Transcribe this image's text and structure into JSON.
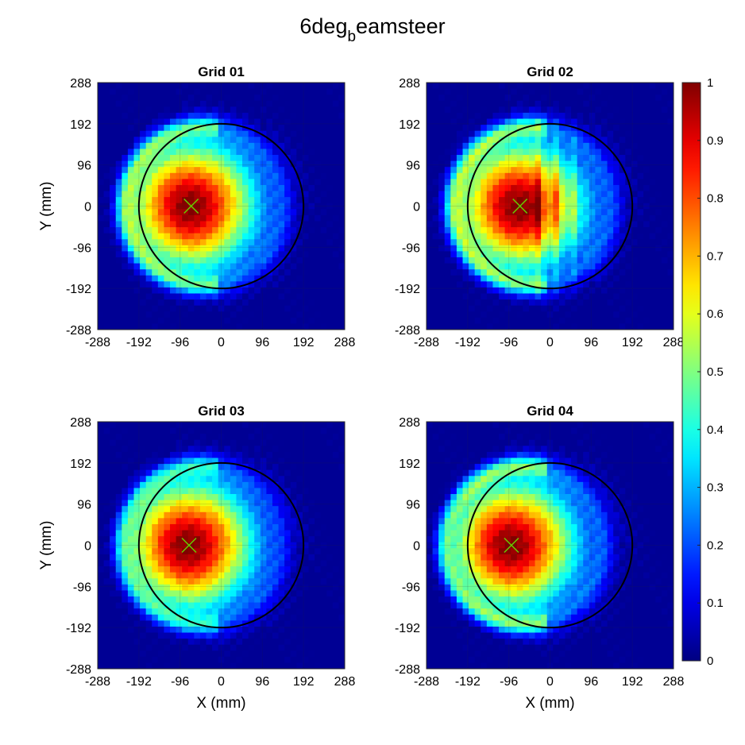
{
  "figure": {
    "title_main": "6deg",
    "title_sub": "b",
    "title_rest": "eamsteer"
  },
  "chart_data": [
    {
      "type": "heatmap",
      "title": "Grid 01",
      "xlabel": "",
      "ylabel": "Y (mm)",
      "xlim": [
        -288,
        288
      ],
      "ylim": [
        -288,
        288
      ],
      "xticks": [
        -288,
        -192,
        -96,
        0,
        96,
        192,
        288
      ],
      "yticks": [
        -288,
        -192,
        -96,
        0,
        96,
        192,
        288
      ],
      "grid": true,
      "beam_center": [
        -70,
        0
      ],
      "circle": {
        "cx": 0,
        "cy": 0,
        "r": 192
      },
      "marker": {
        "x": -70,
        "y": 0,
        "symbol": "x",
        "color": "#66cc00"
      },
      "fringe": 0.28,
      "stripe_period_cells": 0
    },
    {
      "type": "heatmap",
      "title": "Grid 02",
      "xlabel": "",
      "ylabel": "",
      "xlim": [
        -288,
        288
      ],
      "ylim": [
        -288,
        288
      ],
      "xticks": [
        -288,
        -192,
        -96,
        0,
        96,
        192,
        288
      ],
      "yticks": [
        -288,
        -192,
        -96,
        0,
        96,
        192,
        288
      ],
      "grid": true,
      "beam_center": [
        -70,
        0
      ],
      "circle": {
        "cx": 0,
        "cy": 0,
        "r": 192
      },
      "marker": {
        "x": -70,
        "y": 0,
        "symbol": "x",
        "color": "#66cc00"
      },
      "fringe": 0.3,
      "stripe_period_cells": 3
    },
    {
      "type": "heatmap",
      "title": "Grid 03",
      "xlabel": "X (mm)",
      "ylabel": "Y (mm)",
      "xlim": [
        -288,
        288
      ],
      "ylim": [
        -288,
        288
      ],
      "xticks": [
        -288,
        -192,
        -96,
        0,
        96,
        192,
        288
      ],
      "yticks": [
        -288,
        -192,
        -96,
        0,
        96,
        192,
        288
      ],
      "grid": true,
      "beam_center": [
        -75,
        0
      ],
      "circle": {
        "cx": 0,
        "cy": 0,
        "r": 192
      },
      "marker": {
        "x": -75,
        "y": 0,
        "symbol": "x",
        "color": "#66cc00"
      },
      "fringe": 0.22,
      "stripe_period_cells": 0
    },
    {
      "type": "heatmap",
      "title": "Grid 04",
      "xlabel": "X (mm)",
      "ylabel": "",
      "xlim": [
        -288,
        288
      ],
      "ylim": [
        -288,
        288
      ],
      "xticks": [
        -288,
        -192,
        -96,
        0,
        96,
        192,
        288
      ],
      "yticks": [
        -288,
        -192,
        -96,
        0,
        96,
        192,
        288
      ],
      "grid": true,
      "beam_center": [
        -90,
        0
      ],
      "circle": {
        "cx": 0,
        "cy": 0,
        "r": 192
      },
      "marker": {
        "x": -90,
        "y": 0,
        "symbol": "x",
        "color": "#66cc00"
      },
      "fringe": 0.32,
      "stripe_period_cells": 0
    }
  ],
  "colorbar": {
    "colormap": "jet",
    "range": [
      0,
      1
    ],
    "ticks": [
      "0",
      "0.1",
      "0.2",
      "0.3",
      "0.4",
      "0.5",
      "0.6",
      "0.7",
      "0.8",
      "0.9",
      "1"
    ]
  }
}
